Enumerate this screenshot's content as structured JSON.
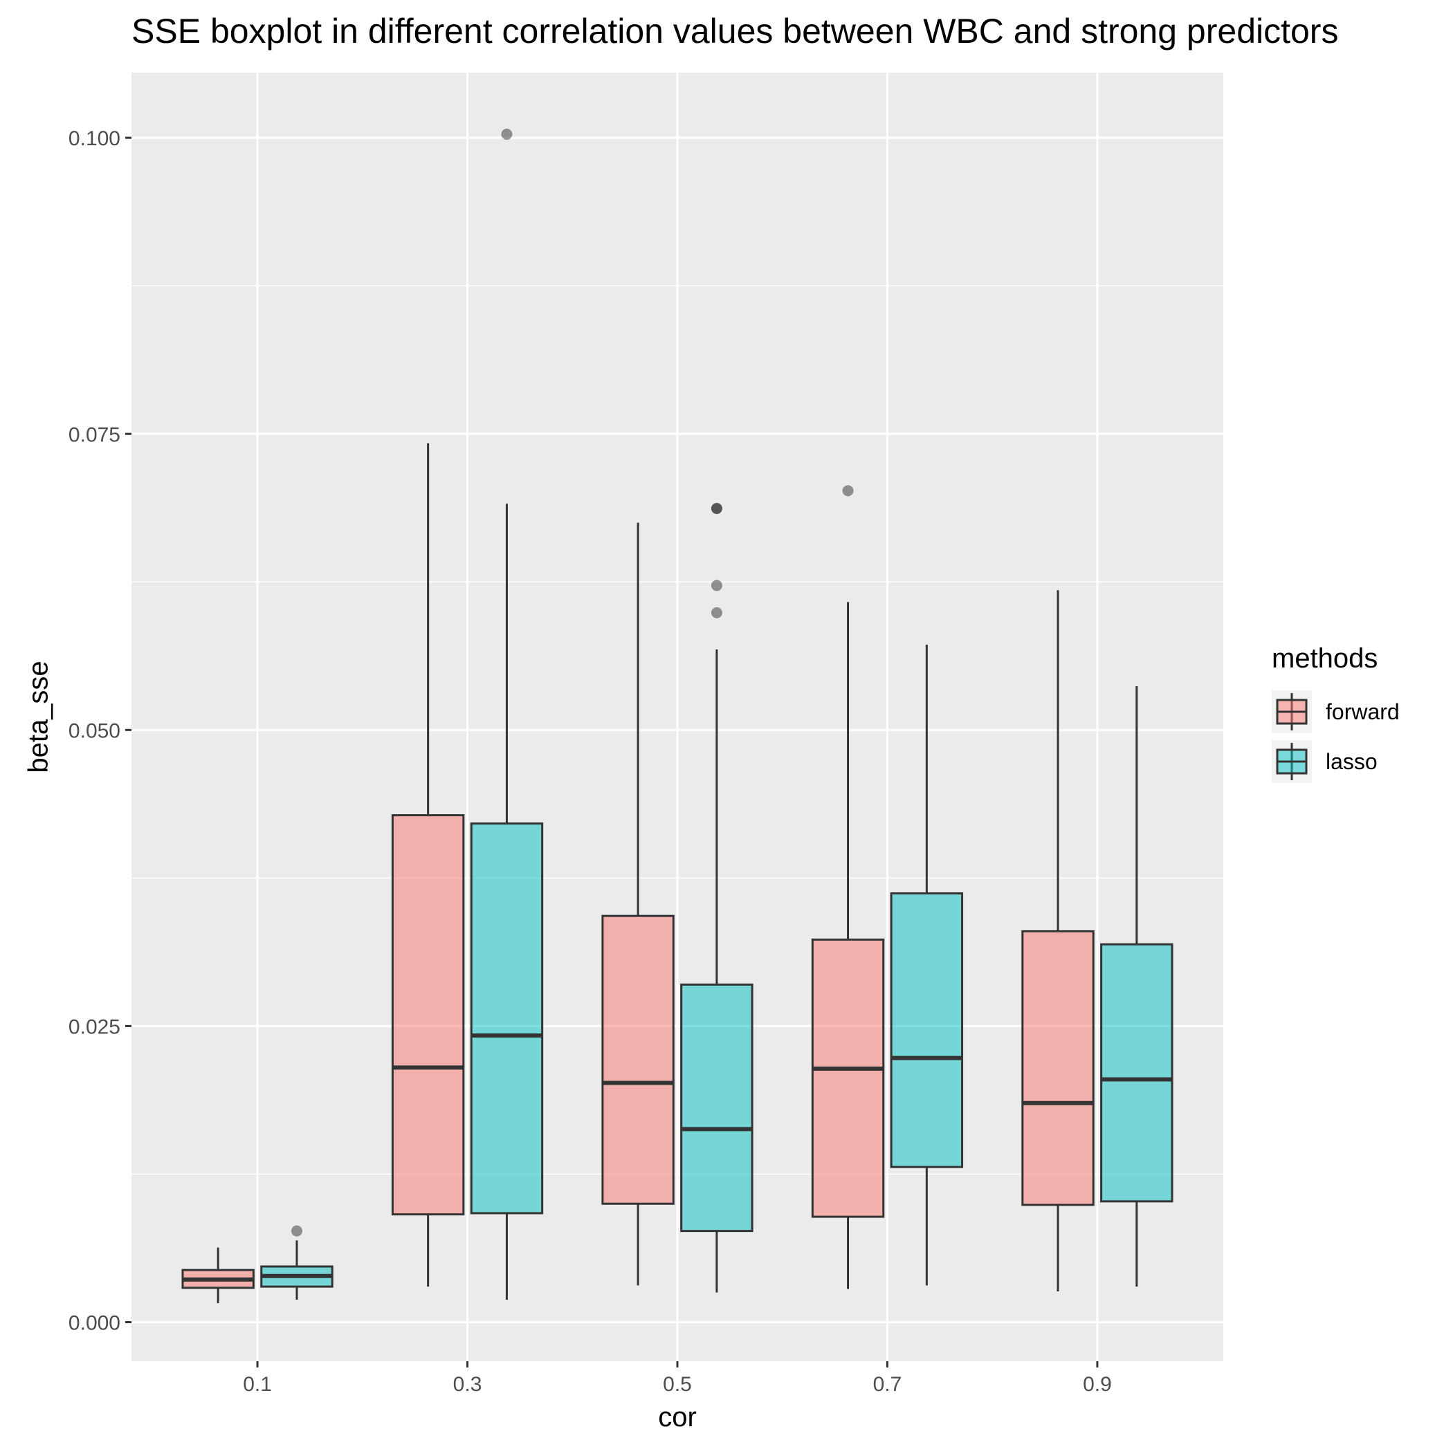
{
  "chart_data": {
    "type": "boxplot",
    "title": "SSE boxplot in different correlation values between WBC and strong predictors",
    "xlabel": "cor",
    "ylabel": "beta_sse",
    "categories": [
      "0.1",
      "0.3",
      "0.5",
      "0.7",
      "0.9"
    ],
    "ylim": [
      -0.0033,
      0.1055
    ],
    "yticks": [
      0.0,
      0.025,
      0.05,
      0.075,
      0.1
    ],
    "ytick_labels": [
      "0.000",
      "0.025",
      "0.050",
      "0.075",
      "0.100"
    ],
    "grid": true,
    "legend": {
      "title": "methods",
      "placement": "right"
    },
    "series": [
      {
        "name": "forward",
        "color": "#F8766D",
        "boxes": [
          {
            "lower_whisker": 0.0016,
            "q1": 0.0029,
            "median": 0.0036,
            "q3": 0.0044,
            "upper_whisker": 0.0063,
            "outliers": []
          },
          {
            "lower_whisker": 0.003,
            "q1": 0.0091,
            "median": 0.0215,
            "q3": 0.0428,
            "upper_whisker": 0.0742,
            "outliers": []
          },
          {
            "lower_whisker": 0.0031,
            "q1": 0.01,
            "median": 0.0202,
            "q3": 0.0343,
            "upper_whisker": 0.0675,
            "outliers": []
          },
          {
            "lower_whisker": 0.0028,
            "q1": 0.0089,
            "median": 0.0214,
            "q3": 0.0323,
            "upper_whisker": 0.0608,
            "outliers": [
              0.0702
            ]
          },
          {
            "lower_whisker": 0.0026,
            "q1": 0.0099,
            "median": 0.0185,
            "q3": 0.033,
            "upper_whisker": 0.0618,
            "outliers": []
          }
        ]
      },
      {
        "name": "lasso",
        "color": "#00BFC4",
        "boxes": [
          {
            "lower_whisker": 0.0019,
            "q1": 0.003,
            "median": 0.0039,
            "q3": 0.0047,
            "upper_whisker": 0.0069,
            "outliers": [
              0.0077
            ]
          },
          {
            "lower_whisker": 0.0019,
            "q1": 0.0092,
            "median": 0.0242,
            "q3": 0.0421,
            "upper_whisker": 0.0691,
            "outliers": [
              0.1003
            ]
          },
          {
            "lower_whisker": 0.0025,
            "q1": 0.0077,
            "median": 0.0163,
            "q3": 0.0285,
            "upper_whisker": 0.0568,
            "outliers": [
              0.0599,
              0.0622,
              0.0687,
              0.0687
            ]
          },
          {
            "lower_whisker": 0.0031,
            "q1": 0.0131,
            "median": 0.0223,
            "q3": 0.0362,
            "upper_whisker": 0.0572,
            "outliers": []
          },
          {
            "lower_whisker": 0.003,
            "q1": 0.0102,
            "median": 0.0205,
            "q3": 0.0319,
            "upper_whisker": 0.0537,
            "outliers": []
          }
        ]
      }
    ]
  }
}
